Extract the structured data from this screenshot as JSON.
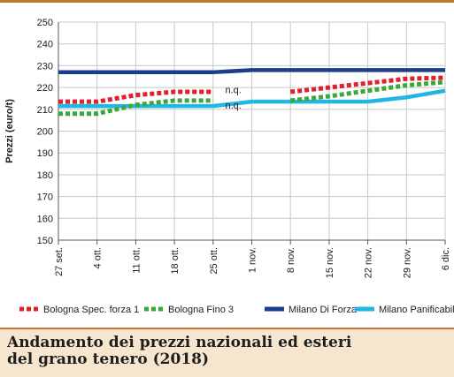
{
  "colors": {
    "accent": "#c07a2a",
    "caption_bg": "#f6e6cf",
    "grid": "#c8c8c8"
  },
  "caption": {
    "line1": "Andamento dei prezzi nazionali ed esteri",
    "line2": "del grano tenero (2018)"
  },
  "chart_data": {
    "type": "line",
    "title": "",
    "xlabel": "",
    "ylabel": "Prezzi (euro/t)",
    "ylim": [
      150,
      250
    ],
    "yticks": [
      "150",
      "160",
      "170",
      "180",
      "190",
      "200",
      "210",
      "220",
      "230",
      "240",
      "250"
    ],
    "grid": true,
    "legend_position": "bottom",
    "categories": [
      "27 set.",
      "4 ott.",
      "11 ott.",
      "18 ott.",
      "25 ott.",
      "1 nov.",
      "8 nov.",
      "15 nov.",
      "22 nov.",
      "29 nov.",
      "6 dic."
    ],
    "annotations": [
      {
        "text": "n.q.",
        "x": "1 nov.",
        "y": 219
      },
      {
        "text": "n.q.",
        "x": "1 nov.",
        "y": 212
      }
    ],
    "series": [
      {
        "name": "Bologna Spec. forza 1",
        "color": "#e0202a",
        "style": "dotted",
        "values": [
          213.5,
          213.5,
          216.5,
          218,
          218,
          null,
          218,
          220,
          222,
          224,
          224.5
        ]
      },
      {
        "name": "Bologna Fino 3",
        "color": "#3aa93a",
        "style": "dotted",
        "values": [
          208,
          208,
          212,
          214,
          214,
          null,
          214,
          216,
          218.5,
          221,
          222.5
        ]
      },
      {
        "name": "Milano Di Forza",
        "color": "#183e8c",
        "style": "solid",
        "values": [
          227,
          227,
          227,
          227,
          227,
          228,
          228,
          228,
          228,
          228,
          228
        ]
      },
      {
        "name": "Milano Panificabile",
        "color": "#22b6e4",
        "style": "solid",
        "values": [
          211.5,
          211.5,
          211.5,
          211.5,
          211.5,
          213.5,
          213.5,
          213.5,
          213.5,
          215.5,
          218.5
        ]
      }
    ]
  }
}
